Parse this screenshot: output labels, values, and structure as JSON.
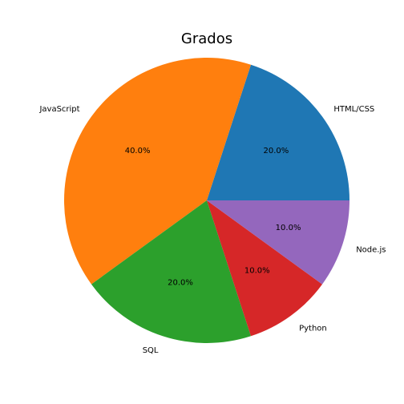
{
  "chart_data": {
    "type": "pie",
    "title": "Grados",
    "categories": [
      "HTML/CSS",
      "JavaScript",
      "SQL",
      "Python",
      "Node.js"
    ],
    "values": [
      20.0,
      40.0,
      20.0,
      10.0,
      10.0
    ],
    "percent_labels": [
      "20.0%",
      "40.0%",
      "20.0%",
      "10.0%",
      "10.0%"
    ],
    "colors": [
      "#1f77b4",
      "#ff7f0e",
      "#2ca02c",
      "#d62728",
      "#9467bd"
    ],
    "start_angle_deg": 0,
    "direction": "counterclockwise",
    "legend": "none"
  }
}
